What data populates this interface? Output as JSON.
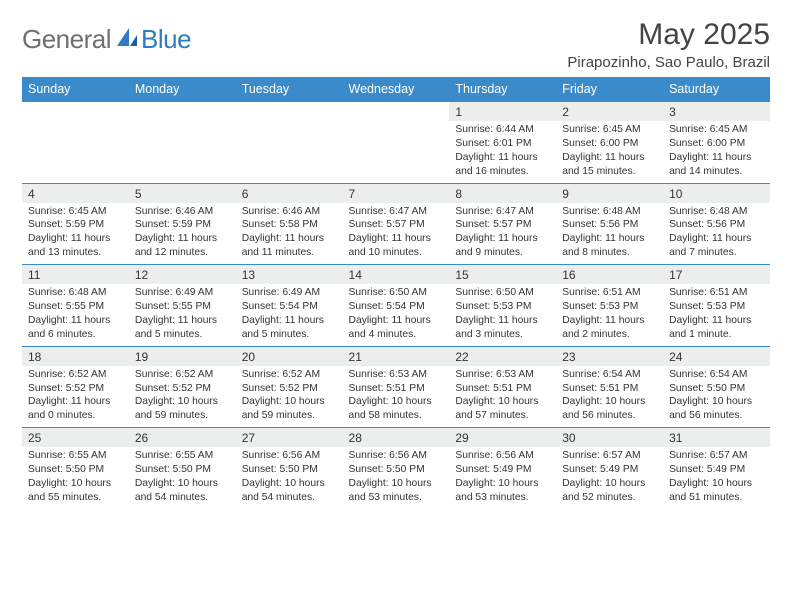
{
  "logo": {
    "general": "General",
    "blue": "Blue"
  },
  "title": "May 2025",
  "location": "Pirapozinho, Sao Paulo, Brazil",
  "colors": {
    "header_bg": "#3b8bca",
    "header_text": "#ffffff",
    "daynum_bg": "#eceded",
    "row_border": "#3b8bca",
    "text": "#333333",
    "logo_gray": "#6f6f6f",
    "logo_blue": "#2f7cc2",
    "page_bg": "#ffffff"
  },
  "day_headers": [
    "Sunday",
    "Monday",
    "Tuesday",
    "Wednesday",
    "Thursday",
    "Friday",
    "Saturday"
  ],
  "weeks": [
    {
      "nums": [
        "",
        "",
        "",
        "",
        "1",
        "2",
        "3"
      ],
      "cells": [
        null,
        null,
        null,
        null,
        {
          "sunrise": "6:44 AM",
          "sunset": "6:01 PM",
          "daylight": "11 hours and 16 minutes."
        },
        {
          "sunrise": "6:45 AM",
          "sunset": "6:00 PM",
          "daylight": "11 hours and 15 minutes."
        },
        {
          "sunrise": "6:45 AM",
          "sunset": "6:00 PM",
          "daylight": "11 hours and 14 minutes."
        }
      ]
    },
    {
      "nums": [
        "4",
        "5",
        "6",
        "7",
        "8",
        "9",
        "10"
      ],
      "cells": [
        {
          "sunrise": "6:45 AM",
          "sunset": "5:59 PM",
          "daylight": "11 hours and 13 minutes."
        },
        {
          "sunrise": "6:46 AM",
          "sunset": "5:59 PM",
          "daylight": "11 hours and 12 minutes."
        },
        {
          "sunrise": "6:46 AM",
          "sunset": "5:58 PM",
          "daylight": "11 hours and 11 minutes."
        },
        {
          "sunrise": "6:47 AM",
          "sunset": "5:57 PM",
          "daylight": "11 hours and 10 minutes."
        },
        {
          "sunrise": "6:47 AM",
          "sunset": "5:57 PM",
          "daylight": "11 hours and 9 minutes."
        },
        {
          "sunrise": "6:48 AM",
          "sunset": "5:56 PM",
          "daylight": "11 hours and 8 minutes."
        },
        {
          "sunrise": "6:48 AM",
          "sunset": "5:56 PM",
          "daylight": "11 hours and 7 minutes."
        }
      ]
    },
    {
      "nums": [
        "11",
        "12",
        "13",
        "14",
        "15",
        "16",
        "17"
      ],
      "cells": [
        {
          "sunrise": "6:48 AM",
          "sunset": "5:55 PM",
          "daylight": "11 hours and 6 minutes."
        },
        {
          "sunrise": "6:49 AM",
          "sunset": "5:55 PM",
          "daylight": "11 hours and 5 minutes."
        },
        {
          "sunrise": "6:49 AM",
          "sunset": "5:54 PM",
          "daylight": "11 hours and 5 minutes."
        },
        {
          "sunrise": "6:50 AM",
          "sunset": "5:54 PM",
          "daylight": "11 hours and 4 minutes."
        },
        {
          "sunrise": "6:50 AM",
          "sunset": "5:53 PM",
          "daylight": "11 hours and 3 minutes."
        },
        {
          "sunrise": "6:51 AM",
          "sunset": "5:53 PM",
          "daylight": "11 hours and 2 minutes."
        },
        {
          "sunrise": "6:51 AM",
          "sunset": "5:53 PM",
          "daylight": "11 hours and 1 minute."
        }
      ]
    },
    {
      "nums": [
        "18",
        "19",
        "20",
        "21",
        "22",
        "23",
        "24"
      ],
      "cells": [
        {
          "sunrise": "6:52 AM",
          "sunset": "5:52 PM",
          "daylight": "11 hours and 0 minutes."
        },
        {
          "sunrise": "6:52 AM",
          "sunset": "5:52 PM",
          "daylight": "10 hours and 59 minutes."
        },
        {
          "sunrise": "6:52 AM",
          "sunset": "5:52 PM",
          "daylight": "10 hours and 59 minutes."
        },
        {
          "sunrise": "6:53 AM",
          "sunset": "5:51 PM",
          "daylight": "10 hours and 58 minutes."
        },
        {
          "sunrise": "6:53 AM",
          "sunset": "5:51 PM",
          "daylight": "10 hours and 57 minutes."
        },
        {
          "sunrise": "6:54 AM",
          "sunset": "5:51 PM",
          "daylight": "10 hours and 56 minutes."
        },
        {
          "sunrise": "6:54 AM",
          "sunset": "5:50 PM",
          "daylight": "10 hours and 56 minutes."
        }
      ]
    },
    {
      "nums": [
        "25",
        "26",
        "27",
        "28",
        "29",
        "30",
        "31"
      ],
      "cells": [
        {
          "sunrise": "6:55 AM",
          "sunset": "5:50 PM",
          "daylight": "10 hours and 55 minutes."
        },
        {
          "sunrise": "6:55 AM",
          "sunset": "5:50 PM",
          "daylight": "10 hours and 54 minutes."
        },
        {
          "sunrise": "6:56 AM",
          "sunset": "5:50 PM",
          "daylight": "10 hours and 54 minutes."
        },
        {
          "sunrise": "6:56 AM",
          "sunset": "5:50 PM",
          "daylight": "10 hours and 53 minutes."
        },
        {
          "sunrise": "6:56 AM",
          "sunset": "5:49 PM",
          "daylight": "10 hours and 53 minutes."
        },
        {
          "sunrise": "6:57 AM",
          "sunset": "5:49 PM",
          "daylight": "10 hours and 52 minutes."
        },
        {
          "sunrise": "6:57 AM",
          "sunset": "5:49 PM",
          "daylight": "10 hours and 51 minutes."
        }
      ]
    }
  ],
  "labels": {
    "sunrise": "Sunrise:",
    "sunset": "Sunset:",
    "daylight": "Daylight:"
  }
}
